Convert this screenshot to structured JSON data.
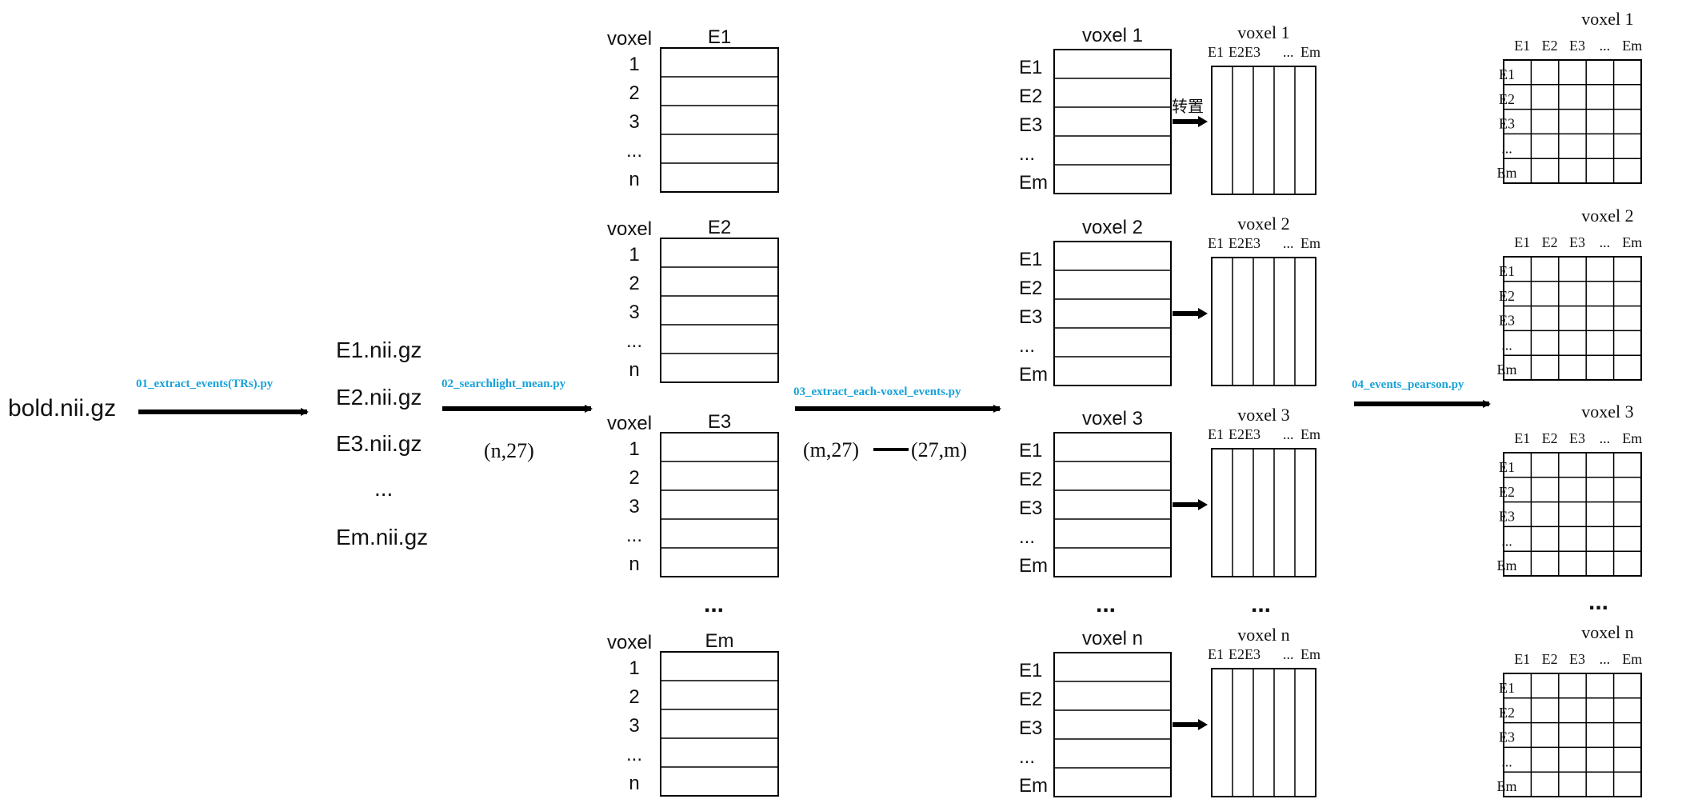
{
  "input_file": "bold.nii.gz",
  "steps": [
    {
      "script": "01_extract_events(TRs).py"
    },
    {
      "script": "02_searchlight_mean.py",
      "shape": "(n,27)"
    },
    {
      "script": "03_extract_each-voxel_events.py",
      "shape_from": "(m,27)",
      "shape_to": "(27,m)"
    },
    {
      "script": "04_events_pearson.py"
    }
  ],
  "event_files": [
    "E1.nii.gz",
    "E2.nii.gz",
    "E3.nii.gz",
    "...",
    "Em.nii.gz"
  ],
  "stage2_tables": [
    {
      "header_left": "voxel",
      "header_title": "E1",
      "row_labels": [
        "1",
        "2",
        "3",
        "...",
        "n"
      ]
    },
    {
      "header_left": "voxel",
      "header_title": "E2",
      "row_labels": [
        "1",
        "2",
        "3",
        "...",
        "n"
      ]
    },
    {
      "header_left": "voxel",
      "header_title": "E3",
      "row_labels": [
        "1",
        "2",
        "3",
        "...",
        "n"
      ]
    },
    {
      "header_left": "voxel",
      "header_title": "Em",
      "row_labels": [
        "1",
        "2",
        "3",
        "...",
        "n"
      ]
    }
  ],
  "stage3_tables": [
    {
      "title": "voxel 1",
      "row_labels": [
        "E1",
        "E2",
        "E3",
        "...",
        "Em"
      ]
    },
    {
      "title": "voxel 2",
      "row_labels": [
        "E1",
        "E2",
        "E3",
        "...",
        "Em"
      ]
    },
    {
      "title": "voxel 3",
      "row_labels": [
        "E1",
        "E2",
        "E3",
        "...",
        "Em"
      ]
    },
    {
      "title": "voxel n",
      "row_labels": [
        "E1",
        "E2",
        "E3",
        "...",
        "Em"
      ]
    }
  ],
  "transpose_label": "转置",
  "stage4_tables": [
    {
      "title": "voxel 1",
      "col_labels": [
        "E1",
        "E2E3",
        "...",
        "Em"
      ]
    },
    {
      "title": "voxel 2",
      "col_labels": [
        "E1",
        "E2E3",
        "...",
        "Em"
      ]
    },
    {
      "title": "voxel 3",
      "col_labels": [
        "E1",
        "E2E3",
        "...",
        "Em"
      ]
    },
    {
      "title": "voxel n",
      "col_labels": [
        "E1",
        "E2E3",
        "...",
        "Em"
      ]
    }
  ],
  "stage5_tables": [
    {
      "title": "voxel 1",
      "col_labels": [
        "E1",
        "E2",
        "E3",
        "...",
        "Em"
      ],
      "row_labels": [
        "E1",
        "E2",
        "E3",
        "...",
        "Em"
      ]
    },
    {
      "title": "voxel 2",
      "col_labels": [
        "E1",
        "E2",
        "E3",
        "...",
        "Em"
      ],
      "row_labels": [
        "E1",
        "E2",
        "E3",
        "...",
        "Em"
      ]
    },
    {
      "title": "voxel 3",
      "col_labels": [
        "E1",
        "E2",
        "E3",
        "...",
        "Em"
      ],
      "row_labels": [
        "E1",
        "E2",
        "E3",
        "...",
        "Em"
      ]
    },
    {
      "title": "voxel n",
      "col_labels": [
        "E1",
        "E2",
        "E3",
        "...",
        "Em"
      ],
      "row_labels": [
        "E1",
        "E2",
        "E3",
        "...",
        "Em"
      ]
    }
  ],
  "ellipsis": "...",
  "colors": {
    "step_label": "#17a2d8",
    "line": "#000000",
    "text": "#111111"
  }
}
